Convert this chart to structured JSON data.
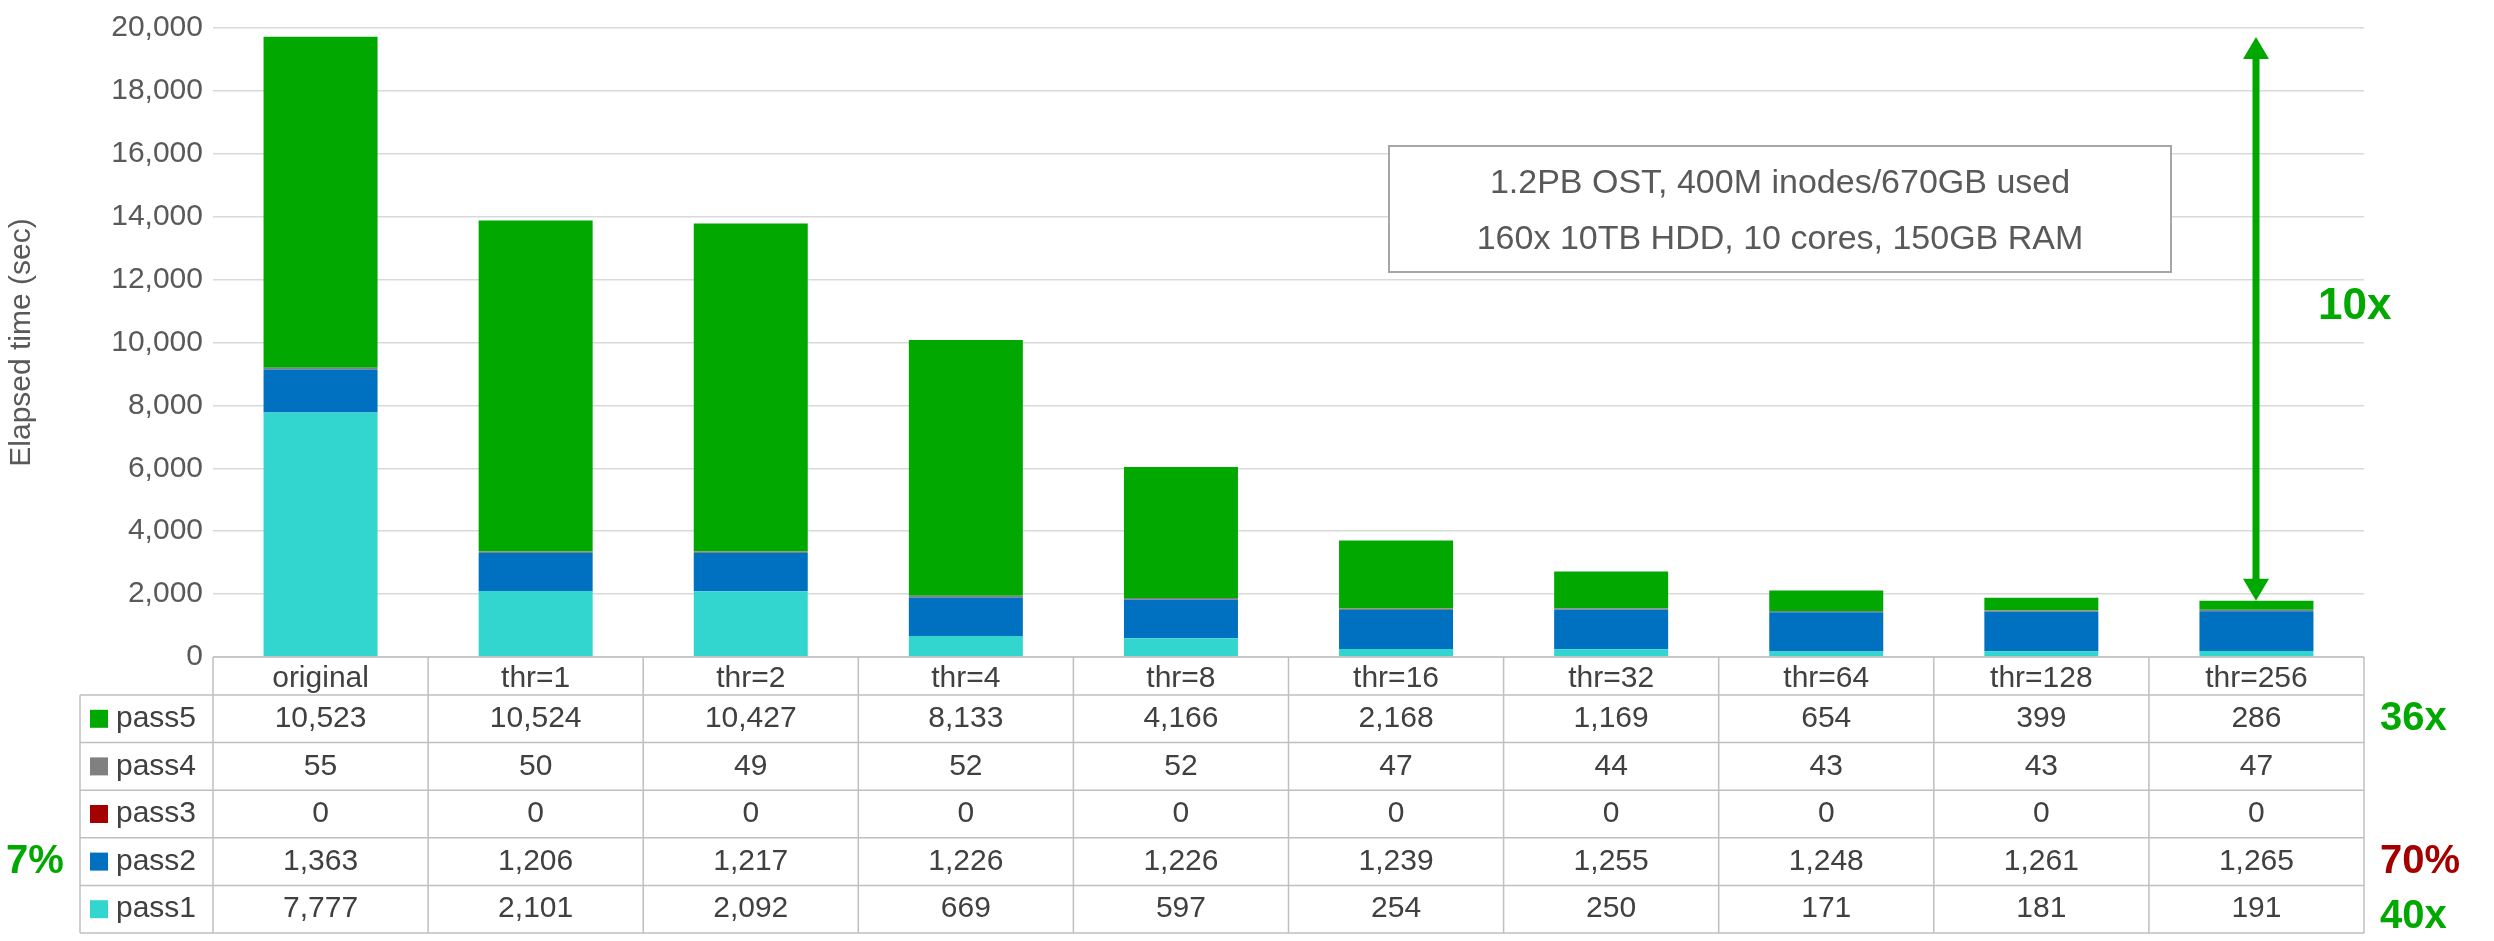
{
  "chart_data": {
    "type": "bar",
    "stacked": true,
    "ylabel": "Elapsed time (sec)",
    "categories": [
      "original",
      "thr=1",
      "thr=2",
      "thr=4",
      "thr=8",
      "thr=16",
      "thr=32",
      "thr=64",
      "thr=128",
      "thr=256"
    ],
    "series": [
      {
        "name": "pass1",
        "color": "#33d6cf",
        "values": [
          7777,
          2101,
          2092,
          669,
          597,
          254,
          250,
          171,
          181,
          191
        ],
        "value_labels": [
          "7,777",
          "2,101",
          "2,092",
          "669",
          "597",
          "254",
          "250",
          "171",
          "181",
          "191"
        ]
      },
      {
        "name": "pass2",
        "color": "#0070c0",
        "values": [
          1363,
          1206,
          1217,
          1226,
          1226,
          1239,
          1255,
          1248,
          1261,
          1265
        ],
        "value_labels": [
          "1,363",
          "1,206",
          "1,217",
          "1,226",
          "1,226",
          "1,239",
          "1,255",
          "1,248",
          "1,261",
          "1,265"
        ]
      },
      {
        "name": "pass3",
        "color": "#a50000",
        "values": [
          0,
          0,
          0,
          0,
          0,
          0,
          0,
          0,
          0,
          0
        ],
        "value_labels": [
          "0",
          "0",
          "0",
          "0",
          "0",
          "0",
          "0",
          "0",
          "0",
          "0"
        ]
      },
      {
        "name": "pass4",
        "color": "#808080",
        "values": [
          55,
          50,
          49,
          52,
          52,
          47,
          44,
          43,
          43,
          47
        ],
        "value_labels": [
          "55",
          "50",
          "49",
          "52",
          "52",
          "47",
          "44",
          "43",
          "43",
          "47"
        ]
      },
      {
        "name": "pass5",
        "color": "#00a800",
        "values": [
          10523,
          10524,
          10427,
          8133,
          4166,
          2168,
          1169,
          654,
          399,
          286
        ],
        "value_labels": [
          "10,523",
          "10,524",
          "10,427",
          "8,133",
          "4,166",
          "2,168",
          "1,169",
          "654",
          "399",
          "286"
        ]
      }
    ],
    "ylim": [
      0,
      20000
    ],
    "yticks": [
      {
        "value": 0,
        "label": "0"
      },
      {
        "value": 2000,
        "label": "2,000"
      },
      {
        "value": 4000,
        "label": "4,000"
      },
      {
        "value": 6000,
        "label": "6,000"
      },
      {
        "value": 8000,
        "label": "8,000"
      },
      {
        "value": 10000,
        "label": "10,000"
      },
      {
        "value": 12000,
        "label": "12,000"
      },
      {
        "value": 14000,
        "label": "14,000"
      },
      {
        "value": 16000,
        "label": "16,000"
      },
      {
        "value": 18000,
        "label": "18,000"
      },
      {
        "value": 20000,
        "label": "20,000"
      }
    ],
    "grid": "y",
    "legend": "bottom",
    "annotations": [
      "1.2PB OST, 400M inodes/670GB used",
      "160x 10TB HDD, 10 cores, 150GB RAM",
      "10x",
      "36x",
      "7%",
      "70%",
      "40x"
    ]
  }
}
